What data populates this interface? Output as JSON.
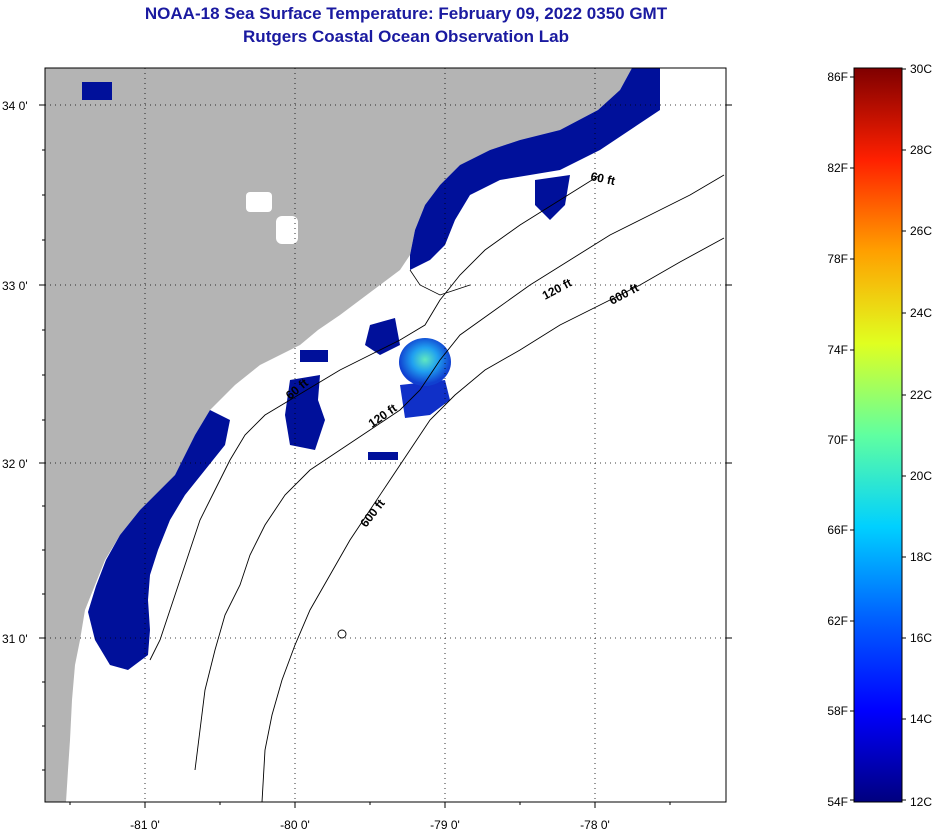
{
  "header": {
    "title": "NOAA-18 Sea Surface Temperature:  February 09, 2022 0350 GMT",
    "subtitle": "Rutgers Coastal Ocean Observation Lab"
  },
  "map": {
    "lat_labels": [
      "34 0'",
      "33 0'",
      "32 0'",
      "31 0'"
    ],
    "lon_labels": [
      "-81 0'",
      "-80 0'",
      "-79 0'",
      "-78 0'"
    ],
    "contour_labels": [
      "60 ft",
      "120 ft",
      "600 ft",
      "60 ft",
      "120 ft",
      "600 ft"
    ]
  },
  "colorbar": {
    "fahrenheit_labels": [
      "86F",
      "82F",
      "78F",
      "74F",
      "70F",
      "66F",
      "62F",
      "58F",
      "54F"
    ],
    "celsius_labels": [
      "30C",
      "28C",
      "26C",
      "24C",
      "22C",
      "20C",
      "18C",
      "16C",
      "14C",
      "12C"
    ],
    "scale_colors": [
      "#00007f",
      "#0000ff",
      "#0080ff",
      "#00ffff",
      "#80ff80",
      "#ffff00",
      "#ff8000",
      "#ff0000",
      "#7f0000"
    ]
  },
  "colors": {
    "land": "#b4b4b4",
    "cold_water": "#00109a",
    "cloud_or_nodata": "#ffffff",
    "title": "#1a1aa0"
  }
}
